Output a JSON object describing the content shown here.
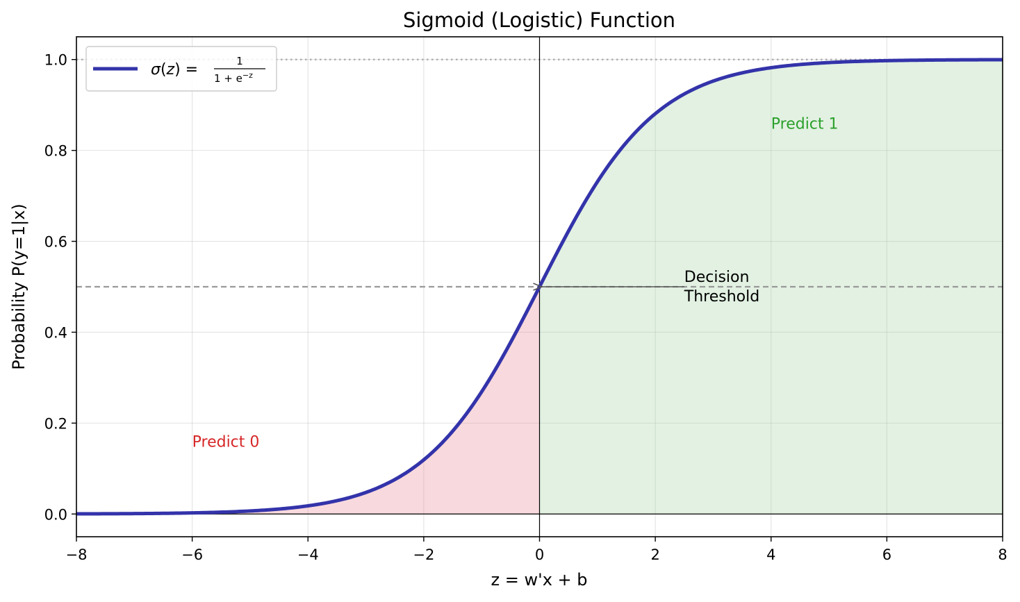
{
  "chart_data": {
    "type": "line",
    "title": "Sigmoid (Logistic) Function",
    "xlabel": "z = w'x + b",
    "ylabel": "Probability P(y=1|x)",
    "xlim": [
      -8,
      8
    ],
    "ylim": [
      -0.05,
      1.05
    ],
    "xticks": [
      -8,
      -6,
      -4,
      -2,
      0,
      2,
      4,
      6,
      8
    ],
    "xtick_labels": [
      "−8",
      "−6",
      "−4",
      "−2",
      "0",
      "2",
      "4",
      "6",
      "8"
    ],
    "yticks": [
      0.0,
      0.2,
      0.4,
      0.6,
      0.8,
      1.0
    ],
    "ytick_labels": [
      "0.0",
      "0.2",
      "0.4",
      "0.6",
      "0.8",
      "1.0"
    ],
    "grid": true,
    "legend_position": "top-left",
    "series": [
      {
        "name": "σ(z) = 1 / (1 + e⁻ᶻ)",
        "function": "sigmoid",
        "x_range": [
          -8,
          8
        ],
        "color": "#3333aa",
        "legend": {
          "sigma": "σ",
          "z": "z",
          "numerator": "1",
          "denominator": "1 + e",
          "exponent": "−z"
        }
      }
    ],
    "regions": [
      {
        "label": "Predict 0",
        "x_range": [
          -8,
          0
        ],
        "color": "#e8808e",
        "text_color": "#d62728",
        "label_at": [
          -6,
          0.16
        ]
      },
      {
        "label": "Predict 1",
        "x_range": [
          0,
          8
        ],
        "color": "#9ed19e",
        "text_color": "#2ca02c",
        "label_at": [
          4,
          0.86
        ]
      }
    ],
    "reference_lines": [
      {
        "orientation": "horizontal",
        "value": 0.5,
        "style": "dashed",
        "color": "#999999"
      },
      {
        "orientation": "horizontal",
        "value": 1.0,
        "style": "dotted",
        "color": "#aaaaaa"
      },
      {
        "orientation": "horizontal",
        "value": 0.0,
        "style": "solid",
        "color": "#000000"
      },
      {
        "orientation": "vertical",
        "value": 0,
        "style": "solid",
        "color": "#000000"
      }
    ],
    "annotations": [
      {
        "lines": [
          "Decision",
          "Threshold"
        ],
        "text_at": [
          2.5,
          0.5
        ],
        "arrow_to": [
          0,
          0.5
        ],
        "color": "#000000"
      }
    ]
  }
}
